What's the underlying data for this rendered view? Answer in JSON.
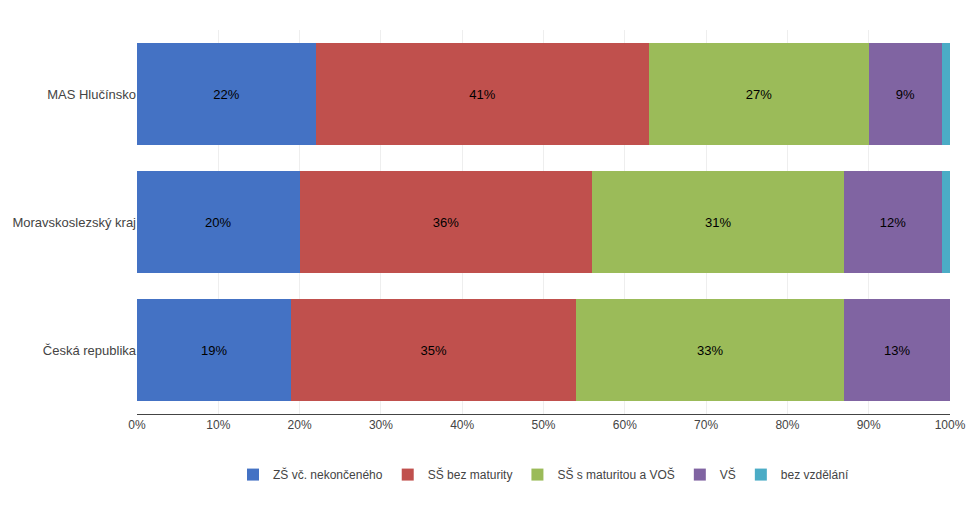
{
  "chart_data": {
    "type": "bar",
    "orientation": "horizontal",
    "stacked": true,
    "categories": [
      "MAS Hlučínsko",
      "Moravskoslezský kraj",
      "Česká republika"
    ],
    "series": [
      {
        "name": "ZŠ vč. nekončeného",
        "color": "#4472C4",
        "values": [
          22,
          20,
          19
        ],
        "value_labels": [
          "22%",
          "20%",
          "19%"
        ]
      },
      {
        "name": "SŠ bez maturity",
        "color": "#C0504D",
        "values": [
          41,
          36,
          35
        ],
        "value_labels": [
          "41%",
          "36%",
          "35%"
        ]
      },
      {
        "name": "SŠ s maturitou a VOŠ",
        "color": "#9BBB59",
        "values": [
          27,
          31,
          33
        ],
        "value_labels": [
          "27%",
          "31%",
          "33%"
        ]
      },
      {
        "name": "VŠ",
        "color": "#8064A2",
        "values": [
          9,
          12,
          13
        ],
        "value_labels": [
          "9%",
          "12%",
          "13%"
        ]
      },
      {
        "name": "bez vzdělání",
        "color": "#4BACC6",
        "values": [
          1,
          1,
          0
        ],
        "value_labels": [
          null,
          null,
          null
        ]
      }
    ],
    "xlim": [
      0,
      100
    ],
    "xticks": [
      {
        "value": 0,
        "label": "0%"
      },
      {
        "value": 10,
        "label": "10%"
      },
      {
        "value": 20,
        "label": "20%"
      },
      {
        "value": 30,
        "label": "30%"
      },
      {
        "value": 40,
        "label": "40%"
      },
      {
        "value": 50,
        "label": "50%"
      },
      {
        "value": 60,
        "label": "60%"
      },
      {
        "value": 70,
        "label": "70%"
      },
      {
        "value": 80,
        "label": "80%"
      },
      {
        "value": 90,
        "label": "90%"
      },
      {
        "value": 100,
        "label": "100%"
      }
    ],
    "grid": true,
    "data_labels": true,
    "legend": "bottom"
  }
}
